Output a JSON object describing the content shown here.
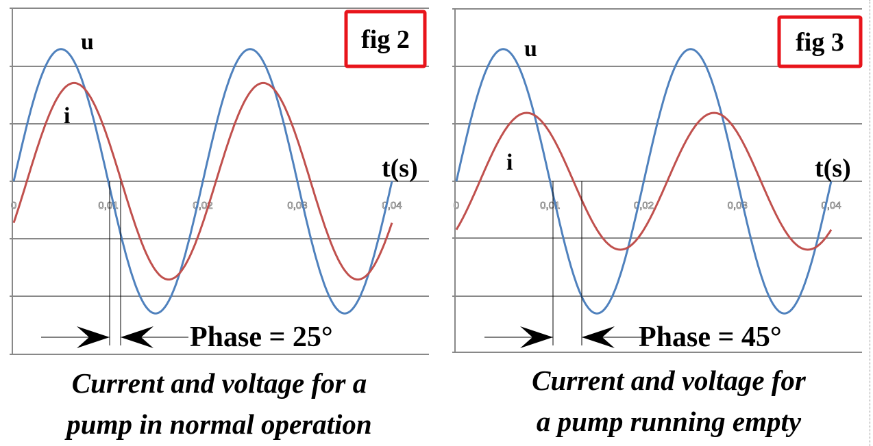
{
  "chart_data": [
    {
      "type": "line",
      "figure_label": "fig 2",
      "xlabel": "t(s)",
      "x_ticks": [
        "0",
        "0,01",
        "0,02",
        "0,03",
        "0,04"
      ],
      "xlim": [
        0,
        0.04
      ],
      "ylim": [
        -3,
        3
      ],
      "grid": true,
      "frequency_hz": 50,
      "series": [
        {
          "name": "u",
          "amplitude": 2.3,
          "phase_deg": 0,
          "color": "#4f81bd"
        },
        {
          "name": "i",
          "amplitude": 1.71,
          "phase_deg": -25,
          "color": "#c0504d"
        }
      ],
      "annotation": "Phase = 25°",
      "caption": [
        "Current and voltage for a",
        "pump in normal operation"
      ]
    },
    {
      "type": "line",
      "figure_label": "fig 3",
      "xlabel": "t(s)",
      "x_ticks": [
        "0",
        "0,01",
        "0,02",
        "0,03",
        "0,04"
      ],
      "xlim": [
        0,
        0.04
      ],
      "ylim": [
        -3,
        3
      ],
      "grid": true,
      "frequency_hz": 50,
      "series": [
        {
          "name": "u",
          "amplitude": 2.3,
          "phase_deg": 0,
          "color": "#4f81bd"
        },
        {
          "name": "i",
          "amplitude": 1.19,
          "phase_deg": -45,
          "color": "#c0504d"
        }
      ],
      "annotation": "Phase = 45°",
      "caption": [
        "Current and voltage for",
        "a pump running empty"
      ]
    }
  ],
  "colors": {
    "grid": "#888888",
    "box": "#e8141b"
  }
}
